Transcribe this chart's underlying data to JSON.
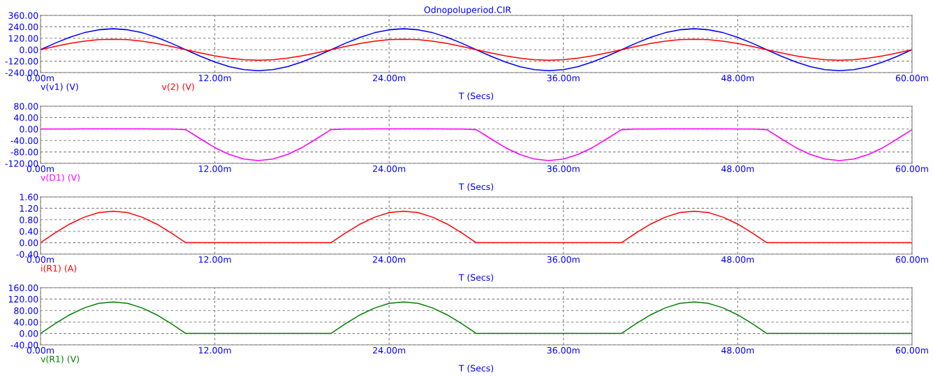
{
  "chart_data": [
    {
      "type": "line",
      "title": "Odnopoluperiod.CIR",
      "xlabel": "T (Secs)",
      "grid": true,
      "line_style": "solid",
      "x": [
        0,
        1,
        2,
        3,
        4,
        5,
        6,
        7,
        8,
        9,
        10,
        11,
        12,
        13,
        14,
        15,
        16,
        17,
        18,
        19,
        20,
        21,
        22,
        23,
        24,
        25,
        26,
        27,
        28,
        29,
        30,
        31,
        32,
        33,
        34,
        35,
        36,
        37,
        38,
        39,
        40,
        41,
        42,
        43,
        44,
        45,
        46,
        47,
        48,
        49,
        50,
        51,
        52,
        53,
        54,
        55,
        56,
        57,
        58,
        59,
        60
      ],
      "xlim": [
        0,
        60
      ],
      "xticks": [
        {
          "value": 0,
          "label": "0.00m"
        },
        {
          "value": 12,
          "label": "12.00m"
        },
        {
          "value": 24,
          "label": "24.00m"
        },
        {
          "value": 36,
          "label": "36.00m"
        },
        {
          "value": 48,
          "label": "48.00m"
        },
        {
          "value": 60,
          "label": "60.00m"
        }
      ],
      "ylim": [
        -240,
        360
      ],
      "yticks": [
        {
          "value": -240,
          "label": "-240.00"
        },
        {
          "value": -120,
          "label": "-120.00"
        },
        {
          "value": 0,
          "label": "0.00"
        },
        {
          "value": 120,
          "label": "120.00"
        },
        {
          "value": 240,
          "label": "240.00"
        },
        {
          "value": 360,
          "label": "360.00"
        }
      ],
      "series": [
        {
          "name": "v(v1) (V)",
          "color": "#0000ff",
          "values": [
            0,
            68,
            129,
            178,
            209,
            220,
            209,
            178,
            129,
            68,
            0,
            -68,
            -129,
            -178,
            -209,
            -220,
            -209,
            -178,
            -129,
            -68,
            0,
            68,
            129,
            178,
            209,
            220,
            209,
            178,
            129,
            68,
            0,
            -68,
            -129,
            -178,
            -209,
            -220,
            -209,
            -178,
            -129,
            -68,
            0,
            68,
            129,
            178,
            209,
            220,
            209,
            178,
            129,
            68,
            0,
            -68,
            -129,
            -178,
            -209,
            -220,
            -209,
            -178,
            -129,
            -68,
            0
          ]
        },
        {
          "name": "v(2) (V)",
          "color": "#ff0000",
          "values": [
            0,
            34,
            65,
            89,
            105,
            110,
            105,
            89,
            65,
            34,
            0,
            -34,
            -65,
            -89,
            -105,
            -110,
            -105,
            -89,
            -65,
            -34,
            0,
            34,
            65,
            89,
            105,
            110,
            105,
            89,
            65,
            34,
            0,
            -34,
            -65,
            -89,
            -105,
            -110,
            -105,
            -89,
            -65,
            -34,
            0,
            34,
            65,
            89,
            105,
            110,
            105,
            89,
            65,
            34,
            0,
            -34,
            -65,
            -89,
            -105,
            -110,
            -105,
            -89,
            -65,
            -34,
            0
          ]
        }
      ]
    },
    {
      "type": "line",
      "xlabel": "T (Secs)",
      "grid": true,
      "line_style": "solid",
      "x": [
        0,
        1,
        2,
        3,
        4,
        5,
        6,
        7,
        8,
        9,
        10,
        11,
        12,
        13,
        14,
        15,
        16,
        17,
        18,
        19,
        20,
        21,
        22,
        23,
        24,
        25,
        26,
        27,
        28,
        29,
        30,
        31,
        32,
        33,
        34,
        35,
        36,
        37,
        38,
        39,
        40,
        41,
        42,
        43,
        44,
        45,
        46,
        47,
        48,
        49,
        50,
        51,
        52,
        53,
        54,
        55,
        56,
        57,
        58,
        59,
        60
      ],
      "xlim": [
        0,
        60
      ],
      "xticks": [
        {
          "value": 0,
          "label": "0.00m"
        },
        {
          "value": 12,
          "label": "12.00m"
        },
        {
          "value": 24,
          "label": "24.00m"
        },
        {
          "value": 36,
          "label": "36.00m"
        },
        {
          "value": 48,
          "label": "48.00m"
        },
        {
          "value": 60,
          "label": "60.00m"
        }
      ],
      "ylim": [
        -120,
        80
      ],
      "yticks": [
        {
          "value": -120,
          "label": "-120.00"
        },
        {
          "value": -80,
          "label": "-80.00"
        },
        {
          "value": -40,
          "label": "-40.00"
        },
        {
          "value": 0,
          "label": "0.00"
        },
        {
          "value": 40,
          "label": "40.00"
        },
        {
          "value": 80,
          "label": "80.00"
        }
      ],
      "series": [
        {
          "name": "v(D1) (V)",
          "color": "#ff00ff",
          "values": [
            0,
            0,
            0,
            1,
            1,
            1,
            1,
            1,
            0,
            0,
            -2,
            -34,
            -65,
            -89,
            -105,
            -110,
            -105,
            -89,
            -65,
            -34,
            -2,
            0,
            0,
            1,
            1,
            1,
            1,
            1,
            0,
            0,
            -2,
            -34,
            -65,
            -89,
            -105,
            -110,
            -105,
            -89,
            -65,
            -34,
            -2,
            0,
            0,
            1,
            1,
            1,
            1,
            1,
            0,
            0,
            -2,
            -34,
            -65,
            -89,
            -105,
            -110,
            -105,
            -89,
            -65,
            -34,
            -2
          ]
        }
      ]
    },
    {
      "type": "line",
      "xlabel": "T (Secs)",
      "grid": true,
      "line_style": "solid",
      "x": [
        0,
        1,
        2,
        3,
        4,
        5,
        6,
        7,
        8,
        9,
        10,
        11,
        12,
        13,
        14,
        15,
        16,
        17,
        18,
        19,
        20,
        21,
        22,
        23,
        24,
        25,
        26,
        27,
        28,
        29,
        30,
        31,
        32,
        33,
        34,
        35,
        36,
        37,
        38,
        39,
        40,
        41,
        42,
        43,
        44,
        45,
        46,
        47,
        48,
        49,
        50,
        51,
        52,
        53,
        54,
        55,
        56,
        57,
        58,
        59,
        60
      ],
      "xlim": [
        0,
        60
      ],
      "xticks": [
        {
          "value": 0,
          "label": "0.00m"
        },
        {
          "value": 12,
          "label": "12.00m"
        },
        {
          "value": 24,
          "label": "24.00m"
        },
        {
          "value": 36,
          "label": "36.00m"
        },
        {
          "value": 48,
          "label": "48.00m"
        },
        {
          "value": 60,
          "label": "60.00m"
        }
      ],
      "ylim": [
        -0.4,
        1.6
      ],
      "yticks": [
        {
          "value": -0.4,
          "label": "-0.40"
        },
        {
          "value": 0,
          "label": "0.00"
        },
        {
          "value": 0.4,
          "label": "0.40"
        },
        {
          "value": 0.8,
          "label": "0.80"
        },
        {
          "value": 1.2,
          "label": "1.20"
        },
        {
          "value": 1.6,
          "label": "1.60"
        }
      ],
      "series": [
        {
          "name": "i(R1) (A)",
          "color": "#ff0000",
          "values": [
            0,
            0.34,
            0.65,
            0.89,
            1.05,
            1.1,
            1.05,
            0.89,
            0.65,
            0.34,
            0,
            0,
            0,
            0,
            0,
            0,
            0,
            0,
            0,
            0,
            0,
            0.34,
            0.65,
            0.89,
            1.05,
            1.1,
            1.05,
            0.89,
            0.65,
            0.34,
            0,
            0,
            0,
            0,
            0,
            0,
            0,
            0,
            0,
            0,
            0,
            0.34,
            0.65,
            0.89,
            1.05,
            1.1,
            1.05,
            0.89,
            0.65,
            0.34,
            0,
            0,
            0,
            0,
            0,
            0,
            0,
            0,
            0,
            0,
            0
          ]
        }
      ]
    },
    {
      "type": "line",
      "xlabel": "T (Secs)",
      "grid": true,
      "line_style": "solid",
      "x": [
        0,
        1,
        2,
        3,
        4,
        5,
        6,
        7,
        8,
        9,
        10,
        11,
        12,
        13,
        14,
        15,
        16,
        17,
        18,
        19,
        20,
        21,
        22,
        23,
        24,
        25,
        26,
        27,
        28,
        29,
        30,
        31,
        32,
        33,
        34,
        35,
        36,
        37,
        38,
        39,
        40,
        41,
        42,
        43,
        44,
        45,
        46,
        47,
        48,
        49,
        50,
        51,
        52,
        53,
        54,
        55,
        56,
        57,
        58,
        59,
        60
      ],
      "xlim": [
        0,
        60
      ],
      "xticks": [
        {
          "value": 0,
          "label": "0.00m"
        },
        {
          "value": 12,
          "label": "12.00m"
        },
        {
          "value": 24,
          "label": "24.00m"
        },
        {
          "value": 36,
          "label": "36.00m"
        },
        {
          "value": 48,
          "label": "48.00m"
        },
        {
          "value": 60,
          "label": "60.00m"
        }
      ],
      "ylim": [
        -40,
        160
      ],
      "yticks": [
        {
          "value": -40,
          "label": "-40.00"
        },
        {
          "value": 0,
          "label": "0.00"
        },
        {
          "value": 40,
          "label": "40.00"
        },
        {
          "value": 80,
          "label": "80.00"
        },
        {
          "value": 120,
          "label": "120.00"
        },
        {
          "value": 160,
          "label": "160.00"
        }
      ],
      "series": [
        {
          "name": "v(R1) (V)",
          "color": "#008000",
          "values": [
            0,
            34,
            65,
            89,
            105,
            110,
            105,
            89,
            65,
            34,
            0,
            0,
            0,
            0,
            0,
            0,
            0,
            0,
            0,
            0,
            0,
            34,
            65,
            89,
            105,
            110,
            105,
            89,
            65,
            34,
            0,
            0,
            0,
            0,
            0,
            0,
            0,
            0,
            0,
            0,
            0,
            34,
            65,
            89,
            105,
            110,
            105,
            89,
            65,
            34,
            0,
            0,
            0,
            0,
            0,
            0,
            0,
            0,
            0,
            0,
            0
          ]
        }
      ]
    }
  ]
}
